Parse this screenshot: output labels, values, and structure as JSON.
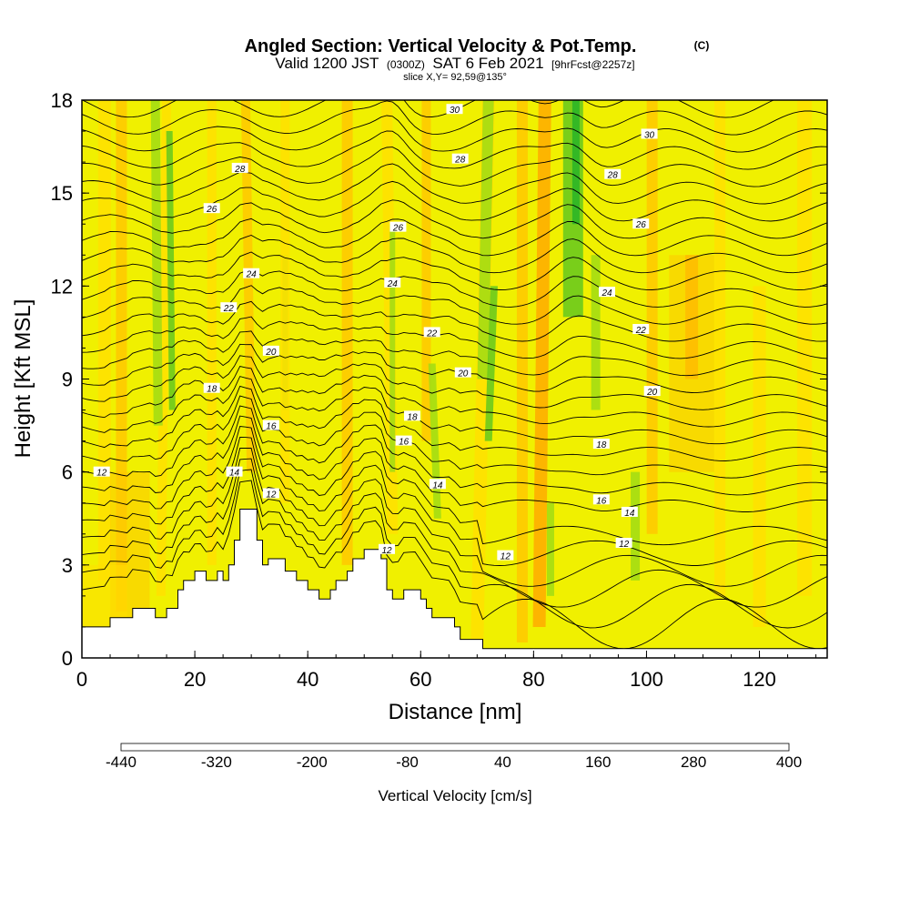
{
  "header": {
    "title": "Angled Section: Vertical Velocity & Pot.Temp.",
    "title_mark": "(C)",
    "valid_prefix": "Valid 1200 JST",
    "valid_utc": "(0300Z)",
    "valid_date": "SAT 6 Feb 2021",
    "valid_fcst": "[9hrFcst@2257z]",
    "slice": "slice X,Y= 92,59@135°"
  },
  "chart_data": {
    "type": "heatmap",
    "xlabel": "Distance [nm]",
    "ylabel": "Height [Kft MSL]",
    "xlim": [
      0,
      132
    ],
    "ylim": [
      0,
      18
    ],
    "x_ticks": [
      0,
      20,
      40,
      60,
      80,
      100,
      120
    ],
    "y_ticks": [
      0,
      3,
      6,
      9,
      12,
      15,
      18
    ],
    "colorbar": {
      "label": "Vertical Velocity [cm/s]",
      "tick_labels": [
        "-440",
        "-320",
        "-200",
        "-80",
        "40",
        "160",
        "280",
        "400"
      ],
      "min": -440,
      "max": 400,
      "colors": [
        "#0000ff",
        "#1450ff",
        "#0080ff",
        "#00b4ff",
        "#00e0e0",
        "#00d8a0",
        "#00c060",
        "#14a83c",
        "#28b428",
        "#64c81e",
        "#a0dc14",
        "#f0f000",
        "#ffe000",
        "#ffc800",
        "#ffaa00",
        "#ff8c00",
        "#ff6400",
        "#ff3c00",
        "#ff0000",
        "#e00028",
        "#c00050",
        "#a00078",
        "#780090",
        "#5a00a0"
      ]
    },
    "background_color": "#f0f000",
    "terrain_kft": [
      [
        0,
        1.0
      ],
      [
        5,
        1.0
      ],
      [
        5,
        1.3
      ],
      [
        9,
        1.3
      ],
      [
        9,
        1.6
      ],
      [
        13,
        1.6
      ],
      [
        13,
        1.3
      ],
      [
        15,
        1.3
      ],
      [
        15,
        1.6
      ],
      [
        17,
        1.6
      ],
      [
        17,
        2.2
      ],
      [
        18,
        2.2
      ],
      [
        18,
        2.5
      ],
      [
        20,
        2.5
      ],
      [
        20,
        2.8
      ],
      [
        22,
        2.8
      ],
      [
        22,
        2.5
      ],
      [
        24,
        2.5
      ],
      [
        24,
        2.8
      ],
      [
        25,
        2.8
      ],
      [
        25,
        2.5
      ],
      [
        26,
        2.5
      ],
      [
        26,
        3.0
      ],
      [
        27,
        3.0
      ],
      [
        27,
        3.8
      ],
      [
        28,
        3.8
      ],
      [
        28,
        4.8
      ],
      [
        31,
        4.8
      ],
      [
        31,
        3.8
      ],
      [
        32,
        3.8
      ],
      [
        32,
        3.0
      ],
      [
        33,
        3.0
      ],
      [
        33,
        3.2
      ],
      [
        36,
        3.2
      ],
      [
        36,
        2.8
      ],
      [
        38,
        2.8
      ],
      [
        38,
        2.5
      ],
      [
        40,
        2.5
      ],
      [
        40,
        2.2
      ],
      [
        42,
        2.2
      ],
      [
        42,
        1.9
      ],
      [
        44,
        1.9
      ],
      [
        44,
        2.2
      ],
      [
        45,
        2.2
      ],
      [
        45,
        2.5
      ],
      [
        47,
        2.5
      ],
      [
        47,
        2.8
      ],
      [
        48,
        2.8
      ],
      [
        48,
        3.2
      ],
      [
        50,
        3.2
      ],
      [
        50,
        3.5
      ],
      [
        53,
        3.5
      ],
      [
        53,
        3.2
      ],
      [
        54,
        3.2
      ],
      [
        54,
        2.2
      ],
      [
        55,
        2.2
      ],
      [
        55,
        1.9
      ],
      [
        57,
        1.9
      ],
      [
        57,
        2.2
      ],
      [
        60,
        2.2
      ],
      [
        60,
        1.9
      ],
      [
        61,
        1.9
      ],
      [
        61,
        1.6
      ],
      [
        62,
        1.6
      ],
      [
        62,
        1.3
      ],
      [
        66,
        1.3
      ],
      [
        66,
        1.0
      ],
      [
        67,
        1.0
      ],
      [
        67,
        0.6
      ],
      [
        71,
        0.6
      ],
      [
        71,
        0.3
      ],
      [
        132,
        0.3
      ]
    ],
    "isentropes": {
      "levels_c": [
        12,
        14,
        16,
        18,
        20,
        22,
        24,
        26,
        28,
        30
      ],
      "labels": [
        {
          "text": "12",
          "x": 3.5,
          "y": 6.0
        },
        {
          "text": "14",
          "x": 27,
          "y": 6.0
        },
        {
          "text": "12",
          "x": 33.5,
          "y": 5.3
        },
        {
          "text": "16",
          "x": 33.5,
          "y": 7.5
        },
        {
          "text": "18",
          "x": 23,
          "y": 8.7
        },
        {
          "text": "20",
          "x": 33.5,
          "y": 9.9
        },
        {
          "text": "22",
          "x": 26,
          "y": 11.3
        },
        {
          "text": "24",
          "x": 30,
          "y": 12.4
        },
        {
          "text": "26",
          "x": 23,
          "y": 14.5
        },
        {
          "text": "28",
          "x": 28,
          "y": 15.8
        },
        {
          "text": "26",
          "x": 56,
          "y": 13.9
        },
        {
          "text": "24",
          "x": 55,
          "y": 12.1
        },
        {
          "text": "22",
          "x": 62,
          "y": 10.5
        },
        {
          "text": "20",
          "x": 67.5,
          "y": 9.2
        },
        {
          "text": "18",
          "x": 58.5,
          "y": 7.8
        },
        {
          "text": "16",
          "x": 57,
          "y": 7.0
        },
        {
          "text": "14",
          "x": 63,
          "y": 5.6
        },
        {
          "text": "12",
          "x": 54,
          "y": 3.5
        },
        {
          "text": "12",
          "x": 75,
          "y": 3.3
        },
        {
          "text": "28",
          "x": 67,
          "y": 16.1
        },
        {
          "text": "30",
          "x": 66,
          "y": 17.7
        },
        {
          "text": "30",
          "x": 100.5,
          "y": 16.9
        },
        {
          "text": "28",
          "x": 94,
          "y": 15.6
        },
        {
          "text": "26",
          "x": 99,
          "y": 14.0
        },
        {
          "text": "24",
          "x": 93,
          "y": 11.8
        },
        {
          "text": "22",
          "x": 99,
          "y": 10.6
        },
        {
          "text": "20",
          "x": 101,
          "y": 8.6
        },
        {
          "text": "18",
          "x": 92,
          "y": 6.9
        },
        {
          "text": "16",
          "x": 92,
          "y": 5.1
        },
        {
          "text": "14",
          "x": 97,
          "y": 4.7
        },
        {
          "text": "12",
          "x": 96,
          "y": 3.7
        }
      ]
    }
  }
}
